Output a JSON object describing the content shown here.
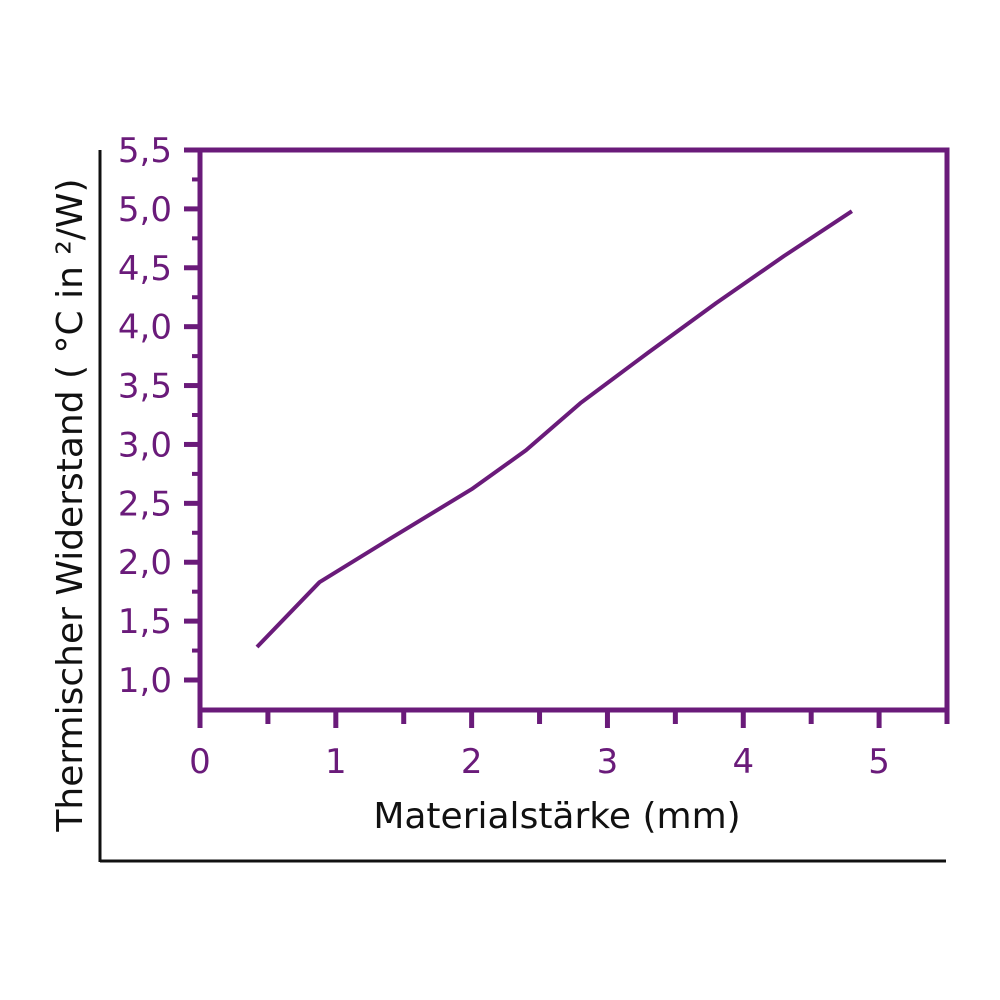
{
  "chart_data": {
    "type": "line",
    "title": "",
    "xlabel": "Materialstärke (mm)",
    "ylabel": "Thermischer Widerstand ( °C in ²/W)",
    "xlim": [
      0,
      5.5
    ],
    "ylim": [
      0.75,
      5.5
    ],
    "x_ticks": [
      0,
      1,
      2,
      3,
      4,
      5
    ],
    "x_tick_labels": [
      "0",
      "1",
      "2",
      "3",
      "4",
      "5"
    ],
    "x_minor_ticks": [
      0.5,
      1.5,
      2.5,
      3.5,
      4.5,
      5.5
    ],
    "y_ticks": [
      1.0,
      1.5,
      2.0,
      2.5,
      3.0,
      3.5,
      4.0,
      4.5,
      5.0,
      5.5
    ],
    "y_tick_labels": [
      "1,0",
      "1,5",
      "2,0",
      "2,5",
      "3,0",
      "3,5",
      "4,0",
      "4,5",
      "5,0",
      "5,5"
    ],
    "y_minor_ticks": [
      1.25,
      1.75,
      2.25,
      2.75,
      3.25,
      3.75,
      4.25,
      4.75,
      5.25
    ],
    "grid": false,
    "legend": "none",
    "series": [
      {
        "x": [
          0.42,
          0.88,
          1.4,
          2.0,
          2.4,
          2.8,
          3.3,
          3.8,
          4.3,
          4.8
        ],
        "y": [
          1.28,
          1.83,
          2.2,
          2.62,
          2.95,
          3.35,
          3.78,
          4.2,
          4.6,
          4.98
        ]
      }
    ],
    "colors": {
      "accent": "#6a1b7a",
      "text": "#111111"
    }
  }
}
